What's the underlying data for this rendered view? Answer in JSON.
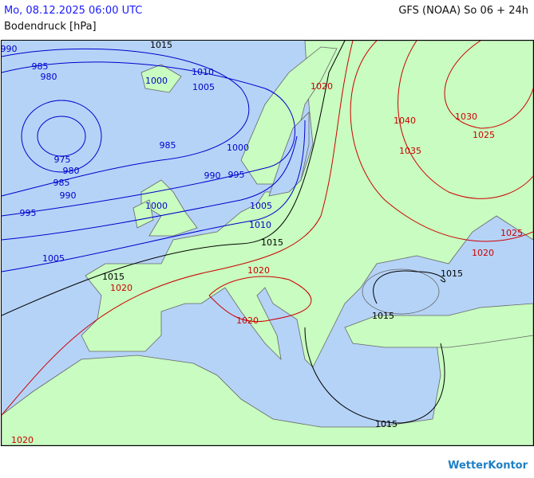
{
  "header": {
    "valid_time": "Mo, 08.12.2025 06:00 UTC",
    "model_run": "GFS (NOAA) So 06 + 24h",
    "parameter": "Bodendruck [hPa]"
  },
  "map": {
    "colors": {
      "sea": "#b5d3f7",
      "land": "#c8fcc0",
      "border": "#666666",
      "low_isobar": "#0000cc",
      "mid_isobar": "#000000",
      "high_isobar": "#cc0000"
    },
    "isobar_labels": [
      {
        "value": "990",
        "color": "low"
      },
      {
        "value": "985",
        "color": "low"
      },
      {
        "value": "980",
        "color": "low"
      },
      {
        "value": "1000",
        "color": "low"
      },
      {
        "value": "1010",
        "color": "low"
      },
      {
        "value": "1005",
        "color": "low"
      },
      {
        "value": "975",
        "color": "low"
      },
      {
        "value": "980",
        "color": "low"
      },
      {
        "value": "985",
        "color": "low"
      },
      {
        "value": "990",
        "color": "low"
      },
      {
        "value": "985",
        "color": "low"
      },
      {
        "value": "990",
        "color": "low"
      },
      {
        "value": "995",
        "color": "low"
      },
      {
        "value": "1000",
        "color": "low"
      },
      {
        "value": "1000",
        "color": "low"
      },
      {
        "value": "1005",
        "color": "low"
      },
      {
        "value": "995",
        "color": "low"
      },
      {
        "value": "1010",
        "color": "low"
      },
      {
        "value": "1005",
        "color": "low"
      },
      {
        "value": "1015",
        "color": "mid"
      },
      {
        "value": "1015",
        "color": "mid"
      },
      {
        "value": "1015",
        "color": "mid"
      },
      {
        "value": "1015",
        "color": "mid"
      },
      {
        "value": "1015",
        "color": "mid"
      },
      {
        "value": "1015",
        "color": "mid"
      },
      {
        "value": "1020",
        "color": "high"
      },
      {
        "value": "1040",
        "color": "high"
      },
      {
        "value": "1030",
        "color": "high"
      },
      {
        "value": "1025",
        "color": "high"
      },
      {
        "value": "1035",
        "color": "high"
      },
      {
        "value": "1025",
        "color": "high"
      },
      {
        "value": "1020",
        "color": "high"
      },
      {
        "value": "1020",
        "color": "high"
      },
      {
        "value": "1020",
        "color": "high"
      },
      {
        "value": "1020",
        "color": "high"
      },
      {
        "value": "1020",
        "color": "high"
      }
    ]
  },
  "logo": "WetterKontor"
}
